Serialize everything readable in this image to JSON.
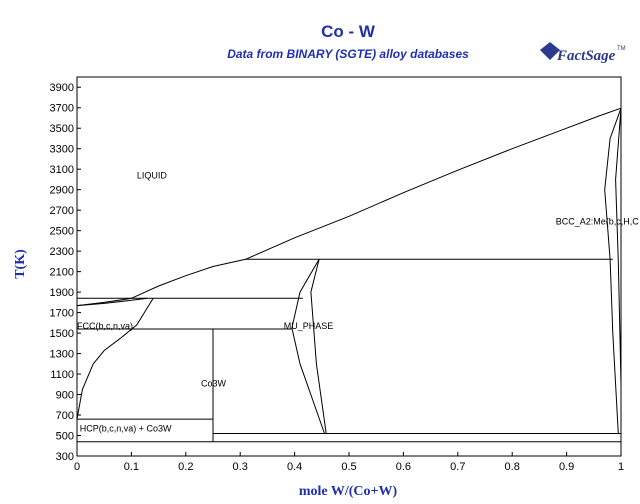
{
  "chart_data": {
    "type": "line",
    "title": "Co - W",
    "subtitle": "Data from BINARY (SGTE) alloy databases",
    "xlabel": "mole W/(Co+W)",
    "ylabel": "T(K)",
    "xlim": [
      0,
      1
    ],
    "ylim": [
      300,
      4000
    ],
    "x_ticks": [
      "0",
      "0.1",
      "0.2",
      "0.3",
      "0.4",
      "0.5",
      "0.6",
      "0.7",
      "0.8",
      "0.9",
      "1"
    ],
    "y_ticks": [
      "300",
      "500",
      "700",
      "900",
      "1100",
      "1300",
      "1500",
      "1700",
      "1900",
      "2100",
      "2300",
      "2500",
      "2700",
      "2900",
      "3100",
      "3300",
      "3500",
      "3700",
      "3900"
    ],
    "grid": false,
    "legend": "none",
    "region_labels": [
      {
        "text": "LIQUID",
        "x": 0.11,
        "y": 3010
      },
      {
        "text": "BCC_A2:Me(b,c,H,C",
        "x": 0.88,
        "y": 2560
      },
      {
        "text": "FCC(b,c,n,va)",
        "x": 0.0,
        "y": 1540
      },
      {
        "text": "MU_PHASE",
        "x": 0.38,
        "y": 1540
      },
      {
        "text": "Co3W",
        "x": 0.228,
        "y": 980
      },
      {
        "text": "HCP(b,c,n,va) + Co3W",
        "x": 0.005,
        "y": 540
      }
    ],
    "series": [
      {
        "values": [
          [
            0,
            1768
          ],
          [
            0.05,
            1800
          ],
          [
            0.1,
            1840
          ],
          [
            0.15,
            1960
          ],
          [
            0.2,
            2060
          ],
          [
            0.25,
            2150
          ],
          [
            0.31,
            2220
          ],
          [
            0.4,
            2430
          ],
          [
            0.5,
            2640
          ],
          [
            0.6,
            2870
          ],
          [
            0.7,
            3090
          ],
          [
            0.8,
            3300
          ],
          [
            0.9,
            3500
          ],
          [
            0.96,
            3620
          ],
          [
            1,
            3695
          ]
        ]
      },
      {
        "values": [
          [
            0,
            1768
          ],
          [
            0.05,
            1790
          ],
          [
            0.1,
            1820
          ],
          [
            0.13,
            1840
          ]
        ]
      },
      {
        "values": [
          [
            0,
            660
          ],
          [
            0.01,
            950
          ],
          [
            0.03,
            1200
          ],
          [
            0.05,
            1330
          ],
          [
            0.08,
            1450
          ],
          [
            0.11,
            1580
          ],
          [
            0.14,
            1840
          ]
        ]
      },
      {
        "values": [
          [
            0,
            1840
          ],
          [
            0.13,
            1840
          ]
        ]
      },
      {
        "values": [
          [
            0.13,
            1840
          ],
          [
            0.415,
            1840
          ]
        ]
      },
      {
        "values": [
          [
            0.31,
            2220
          ],
          [
            0.985,
            2220
          ]
        ]
      },
      {
        "values": [
          [
            0.445,
            2220
          ],
          [
            0.43,
            1900
          ],
          [
            0.44,
            1200
          ],
          [
            0.458,
            520
          ]
        ]
      },
      {
        "values": [
          [
            0.445,
            2220
          ],
          [
            0.41,
            1900
          ],
          [
            0.395,
            1550
          ],
          [
            0.41,
            1200
          ],
          [
            0.455,
            520
          ]
        ]
      },
      {
        "values": [
          [
            0,
            1540
          ],
          [
            0.395,
            1540
          ]
        ]
      },
      {
        "values": [
          [
            0.25,
            1540
          ],
          [
            0.25,
            440
          ]
        ]
      },
      {
        "values": [
          [
            0,
            660
          ],
          [
            0.25,
            660
          ]
        ]
      },
      {
        "values": [
          [
            0.25,
            520
          ],
          [
            1,
            520
          ]
        ]
      },
      {
        "values": [
          [
            0,
            440
          ],
          [
            1,
            440
          ]
        ]
      },
      {
        "values": [
          [
            1,
            3695
          ],
          [
            0.98,
            3400
          ],
          [
            0.97,
            2900
          ],
          [
            0.98,
            2220
          ],
          [
            0.985,
            1500
          ],
          [
            0.99,
            1000
          ],
          [
            0.995,
            520
          ]
        ]
      },
      {
        "values": [
          [
            1,
            3695
          ],
          [
            0.99,
            3000
          ],
          [
            0.995,
            2200
          ],
          [
            0.998,
            1500
          ],
          [
            1,
            1000
          ]
        ]
      }
    ]
  },
  "logo": {
    "text": "FactSage",
    "tm": "TM"
  }
}
